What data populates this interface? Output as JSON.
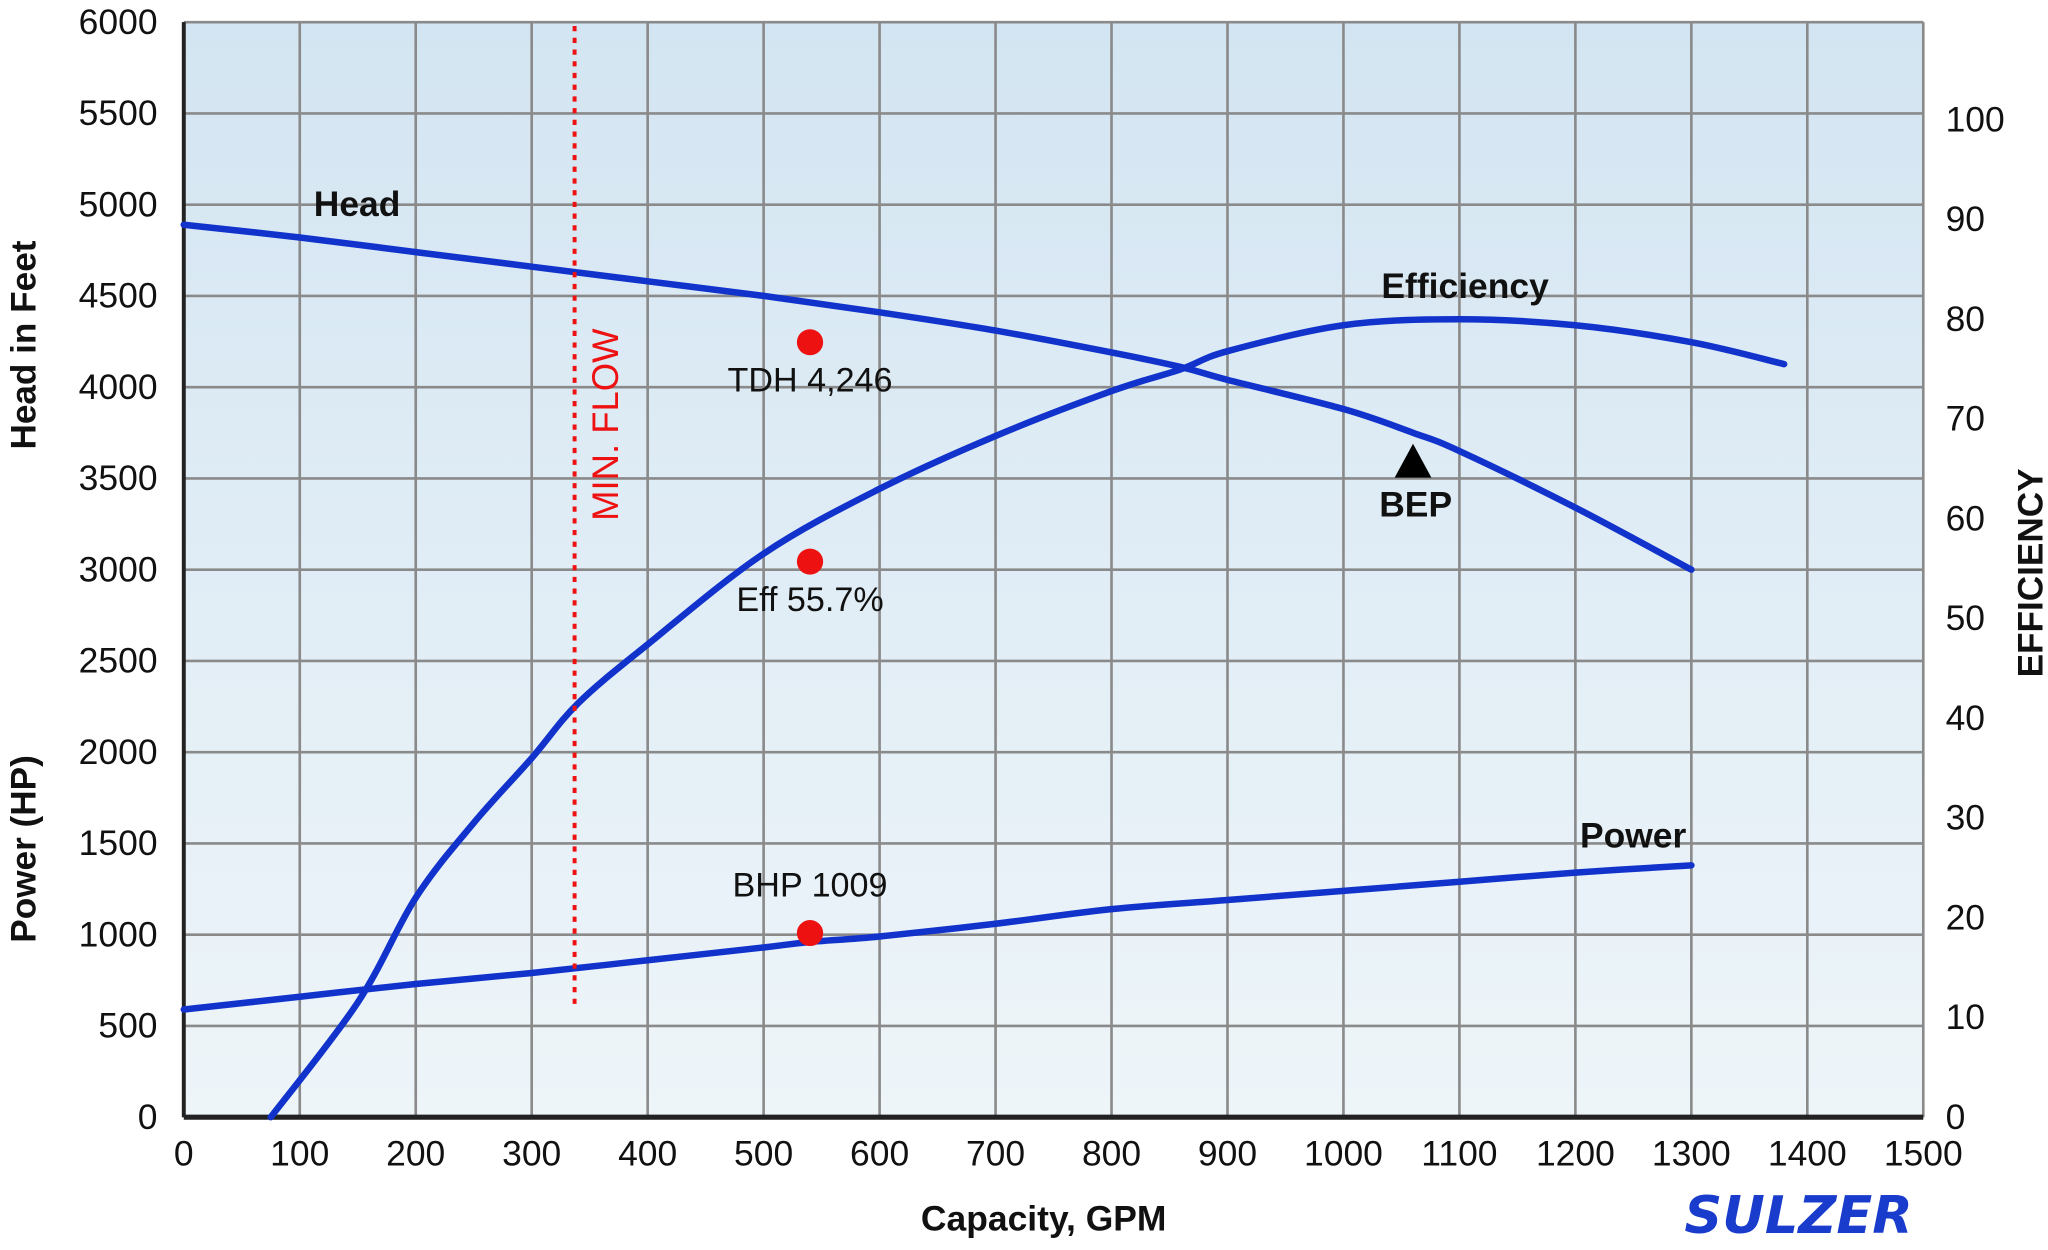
{
  "chart_data": {
    "type": "line",
    "title": "",
    "xlabel": "Capacity, GPM",
    "ylabel_left_top": "Head in Feet",
    "ylabel_left_bottom": "Power (HP)",
    "ylabel_right": "EFFICIENCY",
    "xlim": [
      0,
      1500
    ],
    "ylim": [
      0,
      6000
    ],
    "ylim_right": [
      0,
      110
    ],
    "grid": true,
    "x_ticks": [
      0,
      100,
      200,
      300,
      400,
      500,
      600,
      700,
      800,
      900,
      1000,
      1100,
      1200,
      1300,
      1400,
      1500
    ],
    "y_ticks": [
      0,
      500,
      1000,
      1500,
      2000,
      2500,
      3000,
      3500,
      4000,
      4500,
      5000,
      5500,
      6000
    ],
    "y_right_ticks": [
      0,
      10,
      20,
      30,
      40,
      50,
      60,
      70,
      80,
      90,
      100
    ],
    "series": [
      {
        "name": "Head",
        "axis": "left",
        "color": "#1133cc",
        "x": [
          0,
          100,
          200,
          300,
          400,
          500,
          600,
          700,
          800,
          860,
          900,
          1000,
          1060,
          1100,
          1200,
          1300
        ],
        "y": [
          4890,
          4820,
          4740,
          4660,
          4580,
          4500,
          4410,
          4310,
          4190,
          4110,
          4040,
          3880,
          3750,
          3650,
          3340,
          3000
        ]
      },
      {
        "name": "Efficiency",
        "axis": "right",
        "color": "#1133cc",
        "x": [
          75,
          150,
          200,
          250,
          300,
          340,
          400,
          500,
          600,
          700,
          800,
          860,
          900,
          1000,
          1100,
          1200,
          1300,
          1380
        ],
        "y": [
          0,
          11.5,
          22,
          29.5,
          36,
          41.5,
          47.4,
          56.5,
          63,
          68.3,
          72.8,
          75,
          76.8,
          79.4,
          80,
          79.4,
          77.7,
          75.5
        ]
      },
      {
        "name": "Power",
        "axis": "left",
        "color": "#1133cc",
        "x": [
          0,
          100,
          200,
          300,
          400,
          500,
          540,
          600,
          700,
          800,
          900,
          1000,
          1100,
          1200,
          1300
        ],
        "y": [
          590,
          660,
          730,
          790,
          860,
          930,
          960,
          990,
          1060,
          1140,
          1190,
          1240,
          1290,
          1340,
          1380
        ]
      }
    ],
    "points": [
      {
        "label": "TDH 4,246",
        "x": 540,
        "y": 4246,
        "axis": "left",
        "color": "#ee1111"
      },
      {
        "label": "Eff 55.7%",
        "x": 540,
        "y": 55.7,
        "axis": "right",
        "color": "#ee1111"
      },
      {
        "label": "BHP 1009",
        "x": 540,
        "y": 1009,
        "axis": "left",
        "color": "#ee1111"
      }
    ],
    "annotations": [
      {
        "label": "BEP",
        "x": 1060,
        "y": 3590,
        "marker": "triangle",
        "color": "#000000"
      },
      {
        "label": "MIN. FLOW",
        "x": 337,
        "type": "vertical-dotted-line",
        "y_from": 590,
        "y_to": 6000,
        "color": "#ee1111"
      }
    ],
    "background": [
      "#d3e5f2",
      "#eef5f9"
    ],
    "grid_color": "#8a8a8a"
  },
  "logo": {
    "text": "SULZER",
    "color": "#1a3ccc"
  }
}
